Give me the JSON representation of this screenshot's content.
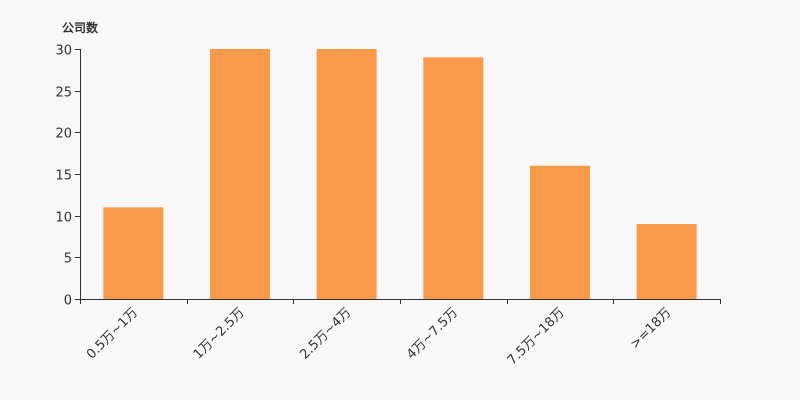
{
  "chart_data": {
    "type": "bar",
    "title": "",
    "xlabel": "",
    "ylabel": "公司数",
    "categories": [
      "0.5万~1万",
      "1万~2.5万",
      "2.5万~4万",
      "4万~7.5万",
      "7.5万~18万",
      ">=18万"
    ],
    "values": [
      11,
      30,
      30,
      29,
      16,
      9
    ],
    "ylim": [
      0,
      30
    ],
    "yticks": [
      0,
      5,
      10,
      15,
      20,
      25,
      30
    ],
    "grid": false,
    "bar_color": "#f89a4a"
  }
}
